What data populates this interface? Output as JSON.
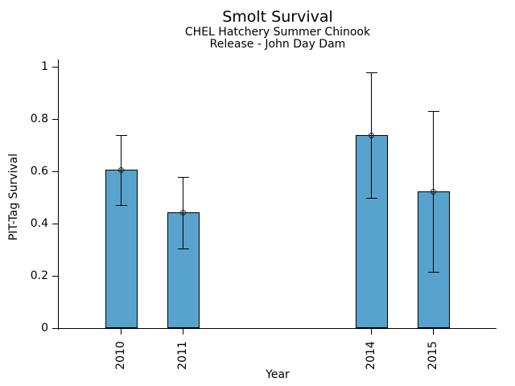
{
  "chart_data": {
    "type": "bar",
    "title": "Smolt Survival",
    "subtitle": [
      "CHEL Hatchery Summer Chinook",
      "Release - John Day Dam"
    ],
    "xlabel": "Year",
    "ylabel": "PIT-Tag Survival",
    "categories": [
      "2010",
      "2011",
      "2014",
      "2015"
    ],
    "x": [
      2010,
      2011,
      2014,
      2015
    ],
    "values": [
      0.606,
      0.443,
      0.738,
      0.523
    ],
    "error_low": [
      0.474,
      0.308,
      0.502,
      0.218
    ],
    "error_high": [
      0.738,
      0.578,
      0.978,
      0.831
    ],
    "xlim": [
      2009,
      2016
    ],
    "ylim": [
      0,
      1
    ],
    "yticks": [
      0,
      0.2,
      0.4,
      0.6,
      0.8,
      1
    ],
    "ytick_labels": [
      "0",
      "0.2",
      "0.4",
      "0.6",
      "0.8",
      "1"
    ],
    "bar_color": "#57A3CE",
    "edge_color": "#000000",
    "marker": "open-circle",
    "error_caps": true,
    "grid": false
  }
}
